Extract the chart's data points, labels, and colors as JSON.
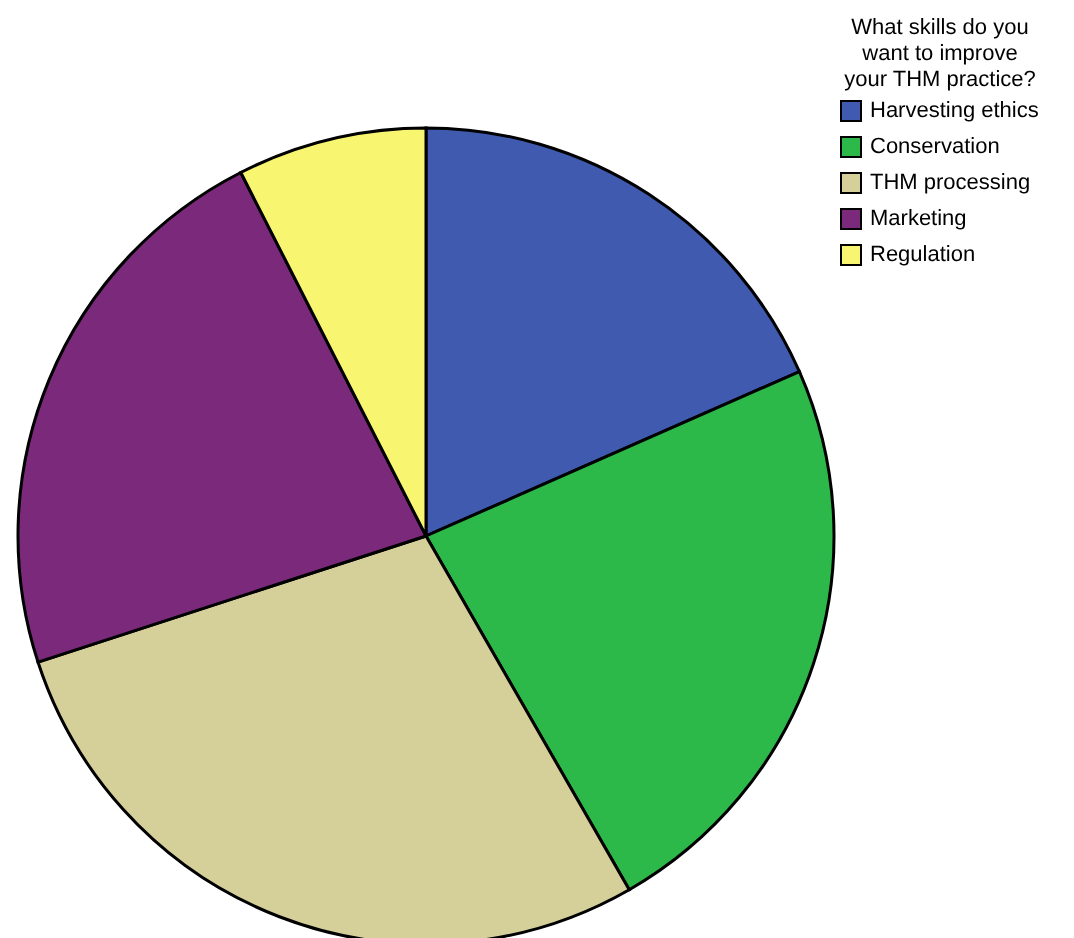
{
  "chart_data": {
    "type": "pie",
    "legend_title": "What skills do you\nwant to improve\nyour THM practice?",
    "legend": "top right",
    "categories": [
      "Harvesting ethics",
      "Conservation",
      "THM processing",
      "Marketing",
      "Regulation"
    ],
    "values": [
      18.4,
      23.3,
      28.3,
      22.5,
      7.5
    ],
    "colors": [
      "#3f5aae",
      "#2db84a",
      "#d5cf99",
      "#7b2a7b",
      "#f8f570"
    ]
  }
}
